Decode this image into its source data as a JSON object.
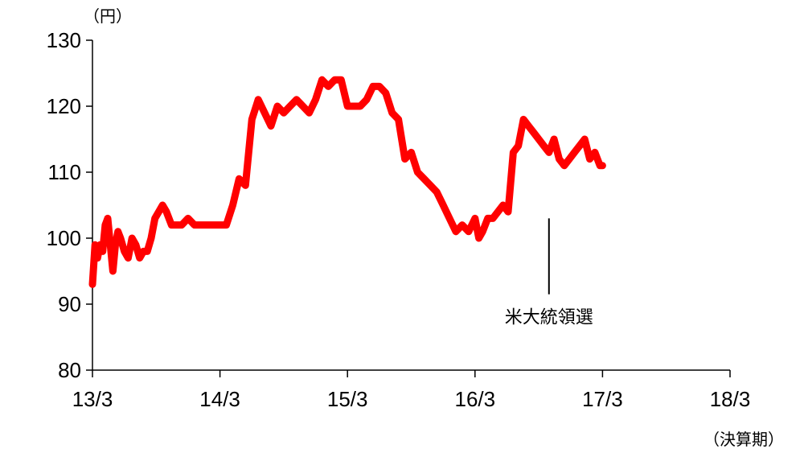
{
  "chart_data": {
    "type": "line",
    "ylabel": "（円）",
    "xlabel": "（決算期）",
    "ylim": [
      80,
      130
    ],
    "y_ticks": [
      "80",
      "90",
      "100",
      "110",
      "120",
      "130"
    ],
    "x_ticks": [
      "13/3",
      "14/3",
      "15/3",
      "16/3",
      "17/3",
      "18/3"
    ],
    "x_range": [
      0,
      5
    ],
    "line_color": "#ff0000",
    "grid": false,
    "series": [
      {
        "x": [
          0.0,
          0.02,
          0.04,
          0.06,
          0.08,
          0.1,
          0.12,
          0.14,
          0.16,
          0.18,
          0.2,
          0.22,
          0.25,
          0.28,
          0.31,
          0.34,
          0.37,
          0.4,
          0.43,
          0.46,
          0.49,
          0.52,
          0.55,
          0.58,
          0.62,
          0.66,
          0.7,
          0.75,
          0.8,
          0.85,
          0.9,
          0.95,
          1.0,
          1.05,
          1.1,
          1.15,
          1.2,
          1.25,
          1.3,
          1.35,
          1.4,
          1.45,
          1.5,
          1.55,
          1.6,
          1.65,
          1.7,
          1.75,
          1.8,
          1.85,
          1.9,
          1.95,
          2.0,
          2.05,
          2.1,
          2.15,
          2.2,
          2.25,
          2.3,
          2.35,
          2.4,
          2.45,
          2.5,
          2.55,
          2.6,
          2.65,
          2.7,
          2.75,
          2.8,
          2.85,
          2.9,
          2.95,
          3.0,
          3.03,
          3.06,
          3.1,
          3.14,
          3.18,
          3.22,
          3.26,
          3.3,
          3.34,
          3.38,
          3.42,
          3.46,
          3.5,
          3.54,
          3.58,
          3.62,
          3.66,
          3.7,
          3.74,
          3.78,
          3.82,
          3.86,
          3.9,
          3.94,
          3.98,
          4.0
        ],
        "values": [
          93,
          99,
          97,
          99,
          98,
          102,
          103,
          99,
          95,
          99,
          101,
          100,
          98,
          97,
          100,
          99,
          97,
          98,
          98,
          100,
          103,
          104,
          105,
          104,
          102,
          102,
          102,
          103,
          102,
          102,
          102,
          102,
          102,
          102,
          105,
          109,
          108,
          118,
          121,
          119,
          117,
          120,
          119,
          120,
          121,
          120,
          119,
          121,
          124,
          123,
          124,
          124,
          120,
          120,
          120,
          121,
          123,
          123,
          122,
          119,
          118,
          112,
          113,
          110,
          109,
          108,
          107,
          105,
          103,
          101,
          102,
          101,
          103,
          100,
          101,
          103,
          103,
          104,
          105,
          104,
          113,
          114,
          118,
          117,
          116,
          115,
          114,
          113,
          115,
          112,
          111,
          112,
          113,
          114,
          115,
          112,
          113,
          111,
          111
        ]
      }
    ],
    "annotations": [
      {
        "text": "米大統領選",
        "x": 3.58,
        "y_from": 103,
        "y_to": 91.5
      }
    ]
  }
}
